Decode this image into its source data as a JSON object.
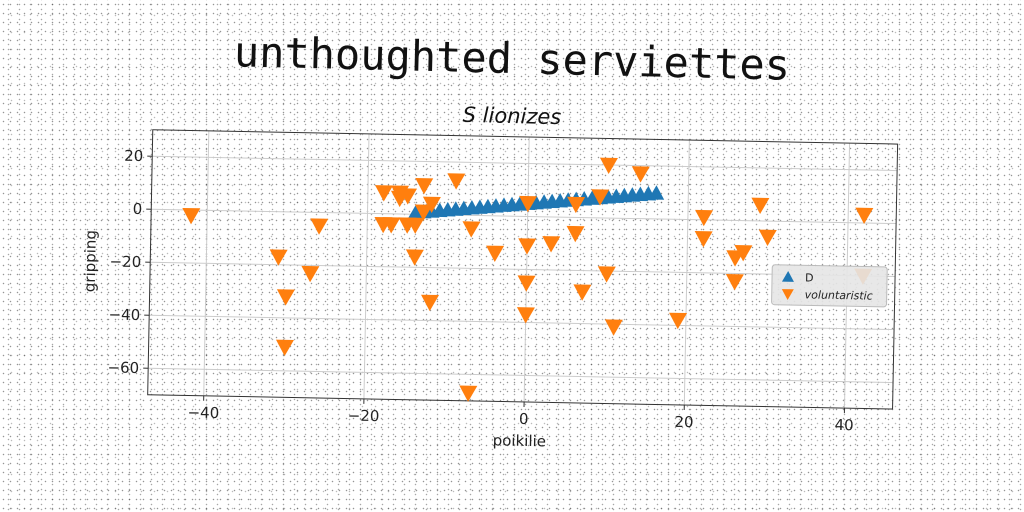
{
  "title": "unthoughted serviettes",
  "subtitle": "S lionizes",
  "colors": {
    "D": "#1f77b4",
    "voluntaristic": "#ff7f0e",
    "grid": "#cccccc"
  },
  "chart_data": {
    "type": "scatter",
    "xlabel": "poikilie",
    "ylabel": "gripping",
    "xlim": [
      -47,
      46
    ],
    "ylim": [
      -70,
      30
    ],
    "xticks": [
      -40,
      -20,
      0,
      20,
      40
    ],
    "yticks": [
      20,
      0,
      -20,
      -40,
      -60
    ],
    "xtick_labels": [
      "−40",
      "−20",
      "0",
      "20",
      "40"
    ],
    "ytick_labels": [
      "20",
      "0",
      "−20",
      "−40",
      "−60"
    ],
    "grid": true,
    "legend_position": "center-right",
    "series": [
      {
        "name": "D",
        "marker": "triangle-up",
        "x": [
          -14,
          -13,
          -12,
          -11,
          -10,
          -9,
          -8,
          -7,
          -6,
          -5,
          -4,
          -3,
          -2,
          -1,
          0,
          1,
          2,
          3,
          4,
          5,
          6,
          7,
          8,
          9,
          10,
          11,
          12,
          13,
          14,
          15,
          16
        ],
        "y": [
          0.5,
          1.0,
          1.3,
          1.6,
          1.9,
          2.2,
          2.5,
          2.8,
          3.1,
          3.4,
          3.7,
          4.0,
          4.3,
          4.6,
          4.9,
          5.2,
          5.5,
          5.8,
          6.1,
          6.4,
          6.7,
          7.0,
          7.3,
          7.6,
          7.9,
          8.2,
          8.5,
          8.8,
          9.1,
          9.4,
          9.7
        ]
      },
      {
        "name": "voluntaristic",
        "marker": "triangle-down",
        "x": [
          -42,
          -31,
          -30,
          -30,
          -27,
          -26,
          -18,
          -18,
          -17,
          -16,
          -16,
          -15,
          -15,
          -14,
          -14,
          -13,
          -13,
          -12,
          -12,
          -9,
          -7,
          -7,
          -4,
          0,
          0,
          0,
          0,
          3,
          6,
          6,
          7,
          9,
          10,
          10,
          11,
          14,
          19,
          22,
          22,
          26,
          26,
          27,
          29,
          30,
          42,
          42
        ],
        "y": [
          -2,
          -17,
          -32,
          -51,
          -23,
          -5,
          8,
          -4,
          -4,
          8,
          6,
          -4,
          7,
          -16,
          -4,
          11,
          1,
          -33,
          4,
          13,
          -5,
          -67,
          -14,
          5,
          -11,
          -25,
          -37,
          -10,
          5,
          -6,
          -28,
          8,
          -21,
          20,
          -41,
          17,
          -38,
          -7,
          1,
          -23,
          -14,
          -12,
          6,
          -6,
          3,
          -20
        ]
      }
    ]
  }
}
